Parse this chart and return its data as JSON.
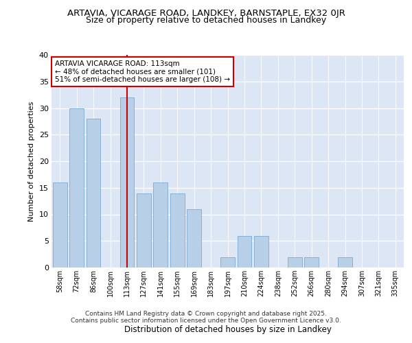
{
  "title1": "ARTAVIA, VICARAGE ROAD, LANDKEY, BARNSTAPLE, EX32 0JR",
  "title2": "Size of property relative to detached houses in Landkey",
  "xlabel": "Distribution of detached houses by size in Landkey",
  "ylabel": "Number of detached properties",
  "categories": [
    "58sqm",
    "72sqm",
    "86sqm",
    "100sqm",
    "113sqm",
    "127sqm",
    "141sqm",
    "155sqm",
    "169sqm",
    "183sqm",
    "197sqm",
    "210sqm",
    "224sqm",
    "238sqm",
    "252sqm",
    "266sqm",
    "280sqm",
    "294sqm",
    "307sqm",
    "321sqm",
    "335sqm"
  ],
  "values": [
    16,
    30,
    28,
    0,
    32,
    14,
    16,
    14,
    11,
    0,
    2,
    6,
    6,
    0,
    2,
    2,
    0,
    2,
    0,
    0,
    0
  ],
  "bar_color": "#b8cfe8",
  "bar_edge_color": "#7aaad0",
  "highlight_index": 4,
  "highlight_line_color": "#cc0000",
  "annotation_text": "ARTAVIA VICARAGE ROAD: 113sqm\n← 48% of detached houses are smaller (101)\n51% of semi-detached houses are larger (108) →",
  "annotation_box_color": "#ffffff",
  "annotation_box_edge": "#cc0000",
  "ylim": [
    0,
    40
  ],
  "yticks": [
    0,
    5,
    10,
    15,
    20,
    25,
    30,
    35,
    40
  ],
  "plot_bg_color": "#dce6f5",
  "fig_bg_color": "#ffffff",
  "footer1": "Contains HM Land Registry data © Crown copyright and database right 2025.",
  "footer2": "Contains public sector information licensed under the Open Government Licence v3.0."
}
